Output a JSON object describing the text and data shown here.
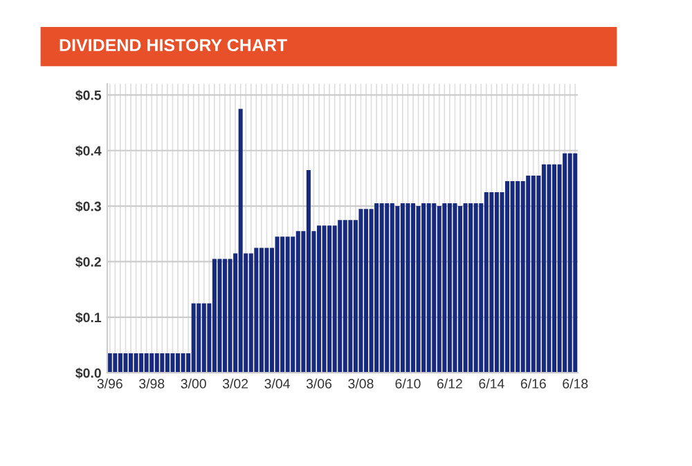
{
  "chart_data": {
    "type": "bar",
    "title": "DIVIDEND HISTORY CHART",
    "categories": [
      "3/96",
      null,
      null,
      null,
      null,
      null,
      null,
      null,
      "3/98",
      null,
      null,
      null,
      null,
      null,
      null,
      null,
      "3/00",
      null,
      null,
      null,
      null,
      null,
      null,
      null,
      "3/02",
      null,
      null,
      null,
      null,
      null,
      null,
      null,
      "3/04",
      null,
      null,
      null,
      null,
      null,
      null,
      null,
      "3/06",
      null,
      null,
      null,
      null,
      null,
      null,
      null,
      "3/08",
      null,
      null,
      null,
      null,
      null,
      null,
      null,
      null,
      "6/10",
      null,
      null,
      null,
      null,
      null,
      null,
      null,
      "6/12",
      null,
      null,
      null,
      null,
      null,
      null,
      null,
      "6/14",
      null,
      null,
      null,
      null,
      null,
      null,
      null,
      "6/16",
      null,
      null,
      null,
      null,
      null,
      null,
      null,
      "6/18"
    ],
    "values": [
      0.035,
      0.035,
      0.035,
      0.035,
      0.035,
      0.035,
      0.035,
      0.035,
      0.035,
      0.035,
      0.035,
      0.035,
      0.035,
      0.035,
      0.035,
      0.035,
      0.125,
      0.125,
      0.125,
      0.125,
      0.205,
      0.205,
      0.205,
      0.205,
      0.215,
      0.475,
      0.215,
      0.215,
      0.225,
      0.225,
      0.225,
      0.225,
      0.245,
      0.245,
      0.245,
      0.245,
      0.255,
      0.255,
      0.365,
      0.255,
      0.265,
      0.265,
      0.265,
      0.265,
      0.275,
      0.275,
      0.275,
      0.275,
      0.295,
      0.295,
      0.295,
      0.305,
      0.305,
      0.305,
      0.305,
      0.3,
      0.305,
      0.305,
      0.305,
      0.3,
      0.305,
      0.305,
      0.305,
      0.3,
      0.305,
      0.305,
      0.305,
      0.3,
      0.305,
      0.305,
      0.305,
      0.305,
      0.325,
      0.325,
      0.325,
      0.325,
      0.345,
      0.345,
      0.345,
      0.345,
      0.355,
      0.355,
      0.355,
      0.375,
      0.375,
      0.375,
      0.375,
      0.395,
      0.395,
      0.395
    ],
    "color": "#172a7e",
    "ylim": [
      0,
      0.52
    ],
    "yticks": [
      {
        "value": 0,
        "label": "$0.0"
      },
      {
        "value": 0.1,
        "label": "$0.1"
      },
      {
        "value": 0.2,
        "label": "$0.2"
      },
      {
        "value": 0.3,
        "label": "$0.3"
      },
      {
        "value": 0.4,
        "label": "$0.4"
      },
      {
        "value": 0.5,
        "label": "$0.5"
      }
    ],
    "grid": true
  }
}
